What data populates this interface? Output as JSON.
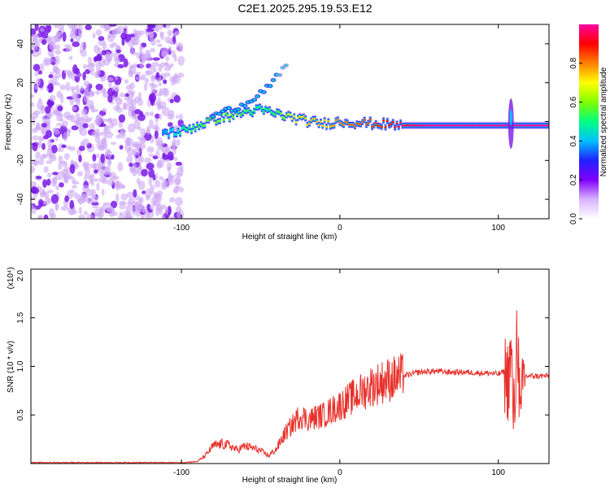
{
  "figure_title": "C2E1.2025.295.19.53.E12",
  "chart_data": [
    {
      "type": "heatmap",
      "title": "C2E1.2025.295.19.53.E12",
      "xlabel": "Height of straight line (km)",
      "ylabel": "Frequency (Hz)",
      "xlim": [
        -195,
        132
      ],
      "ylim": [
        -50,
        50
      ],
      "x_ticks": [
        -100,
        0,
        100
      ],
      "y_ticks": [
        -40,
        -20,
        0,
        20,
        40
      ],
      "colorbar": {
        "label": "Normalized spectral amplitude",
        "range": [
          0.0,
          1.0
        ],
        "ticks": [
          "0.0",
          "0.2",
          "0.4",
          "0.6",
          "0.8"
        ],
        "tick_values": [
          0.0,
          0.2,
          0.4,
          0.6,
          0.8
        ],
        "colors": [
          "#ffffff",
          "#d9b3ff",
          "#8000ff",
          "#2020ff",
          "#00c0ff",
          "#00ff80",
          "#80ff00",
          "#ffff00",
          "#ff8000",
          "#ff0000",
          "#ff00a0"
        ]
      },
      "noise_region": {
        "x_range": [
          -195,
          -100
        ],
        "level": 0.15
      },
      "signal_track": [
        {
          "x": -112,
          "freq": -6,
          "amp": 0.35
        },
        {
          "x": -100,
          "freq": -5,
          "amp": 0.5
        },
        {
          "x": -90,
          "freq": -2,
          "amp": 0.55
        },
        {
          "x": -80,
          "freq": 1,
          "amp": 0.6
        },
        {
          "x": -70,
          "freq": 3,
          "amp": 0.6
        },
        {
          "x": -60,
          "freq": 5,
          "amp": 0.55
        },
        {
          "x": -50,
          "freq": 6,
          "amp": 0.5
        },
        {
          "x": -40,
          "freq": 4,
          "amp": 0.55
        },
        {
          "x": -30,
          "freq": 2,
          "amp": 0.7
        },
        {
          "x": -20,
          "freq": 0,
          "amp": 0.75
        },
        {
          "x": -10,
          "freq": -1,
          "amp": 0.75
        },
        {
          "x": 0,
          "freq": 0,
          "amp": 0.8
        },
        {
          "x": 20,
          "freq": -1,
          "amp": 0.85
        },
        {
          "x": 40,
          "freq": -2,
          "amp": 0.95
        },
        {
          "x": 60,
          "freq": -2,
          "amp": 1.0
        },
        {
          "x": 80,
          "freq": -2,
          "amp": 1.0
        },
        {
          "x": 100,
          "freq": -2,
          "amp": 1.0
        },
        {
          "x": 132,
          "freq": -2,
          "amp": 1.0
        }
      ],
      "upper_branch": [
        {
          "x": -80,
          "freq": 3
        },
        {
          "x": -60,
          "freq": 9
        },
        {
          "x": -45,
          "freq": 18
        },
        {
          "x": -33,
          "freq": 29
        }
      ],
      "spike": {
        "x": 108,
        "freq_range": [
          -14,
          12
        ]
      }
    },
    {
      "type": "line",
      "xlabel": "Height of straight line (km)",
      "ylabel": "SNR (10 * v/v)",
      "scale_label": "(x10⁴)",
      "xlim": [
        -195,
        132
      ],
      "ylim": [
        0,
        2.0
      ],
      "x_ticks": [
        -100,
        0,
        100
      ],
      "y_ticks": [
        "0.5",
        "1.0",
        "1.5",
        "2.0"
      ],
      "y_tick_values": [
        0.5,
        1.0,
        1.5,
        2.0
      ],
      "series": [
        {
          "name": "SNR",
          "color": "#e8302a",
          "x": [
            -195,
            -150,
            -100,
            -90,
            -85,
            -80,
            -75,
            -70,
            -65,
            -60,
            -55,
            -50,
            -45,
            -40,
            -35,
            -30,
            -25,
            -20,
            -15,
            -10,
            -5,
            0,
            5,
            10,
            15,
            20,
            25,
            30,
            35,
            40,
            45,
            50,
            60,
            70,
            80,
            90,
            95,
            100,
            104,
            106,
            108,
            110,
            112,
            114,
            116,
            120,
            132
          ],
          "values": [
            0.01,
            0.01,
            0.01,
            0.02,
            0.08,
            0.18,
            0.2,
            0.19,
            0.14,
            0.18,
            0.16,
            0.13,
            0.08,
            0.15,
            0.3,
            0.4,
            0.5,
            0.45,
            0.48,
            0.5,
            0.55,
            0.6,
            0.65,
            0.7,
            0.75,
            0.8,
            0.83,
            0.86,
            0.88,
            0.9,
            0.92,
            0.94,
            0.95,
            0.94,
            0.94,
            0.93,
            0.93,
            0.92,
            0.95,
            0.85,
            1.1,
            0.4,
            1.5,
            0.3,
            0.9,
            0.9,
            0.9
          ]
        }
      ]
    }
  ]
}
